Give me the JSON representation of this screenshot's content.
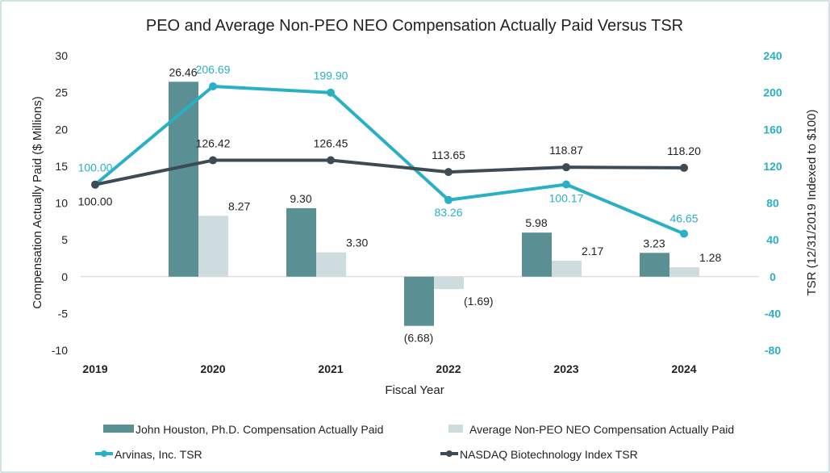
{
  "chart_data": {
    "type": "bar+line",
    "title": "PEO and Average Non-PEO NEO Compensation Actually Paid Versus TSR",
    "xlabel": "Fiscal Year",
    "ylabel_left": "Compensation Actually Paid ($ Millions)",
    "ylabel_right": "TSR (12/31/2019 Indexed to $100)",
    "categories": [
      "2019",
      "2020",
      "2021",
      "2022",
      "2023",
      "2024"
    ],
    "ylim_left": [
      -10,
      30
    ],
    "yticks_left": [
      -10,
      -5,
      0,
      5,
      10,
      15,
      20,
      25,
      30
    ],
    "ylim_right": [
      -80,
      240
    ],
    "yticks_right": [
      -80,
      -40,
      0,
      40,
      80,
      120,
      160,
      200,
      240
    ],
    "grid": false,
    "legend_position": "bottom",
    "series": [
      {
        "name": "John Houston, Ph.D. Compensation Actually Paid",
        "type": "bar",
        "axis": "left",
        "color": "#5a8f93",
        "values": [
          null,
          26.46,
          9.3,
          -6.68,
          5.98,
          3.23
        ],
        "labels": [
          "",
          "26.46",
          "9.30",
          "(6.68)",
          "5.98",
          "3.23"
        ]
      },
      {
        "name": "Average Non-PEO NEO Compensation Actually Paid",
        "type": "bar",
        "axis": "left",
        "color": "#cfdcdf",
        "values": [
          null,
          8.27,
          3.3,
          -1.69,
          2.17,
          1.28
        ],
        "labels": [
          "",
          "8.27",
          "3.30",
          "(1.69)",
          "2.17",
          "1.28"
        ]
      },
      {
        "name": "Arvinas, Inc. TSR",
        "type": "line",
        "axis": "right",
        "color": "#2ab0c5",
        "values": [
          100.0,
          206.69,
          199.9,
          83.26,
          100.17,
          46.65
        ],
        "labels": [
          "100.00",
          "206.69",
          "199.90",
          "83.26",
          "100.17",
          "46.65"
        ]
      },
      {
        "name": "NASDAQ Biotechnology Index TSR",
        "type": "line",
        "axis": "right",
        "color": "#3e4a54",
        "values": [
          100.0,
          126.42,
          126.45,
          113.65,
          118.87,
          118.2
        ],
        "labels": [
          "100.00",
          "126.42",
          "126.45",
          "113.65",
          "118.87",
          "118.20"
        ]
      }
    ]
  }
}
